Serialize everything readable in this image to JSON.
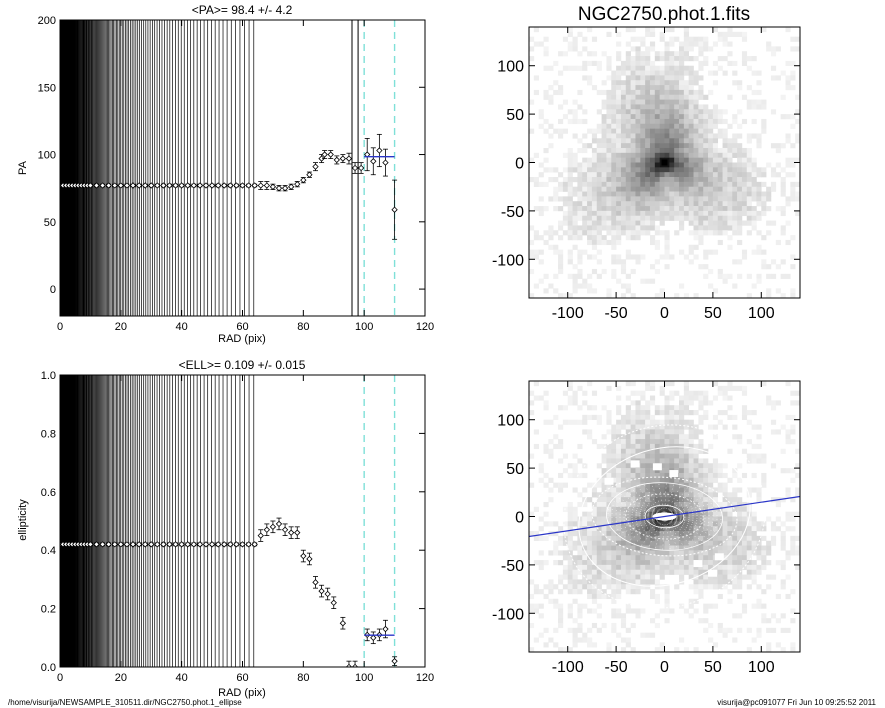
{
  "footer": {
    "path": "/home/visurija/NEWSAMPLE_310511.dir/NGC2750.phot.1_ellipse",
    "stamp": "visurija@pc091077  Fri Jun 10 09:25:52 2011"
  },
  "chart_data": [
    {
      "type": "scatter",
      "id": "pa-profile",
      "title": "<PA>=  98.4 +/-   4.2",
      "xlabel": "RAD (pix)",
      "ylabel": "PA",
      "xlim": [
        0,
        120
      ],
      "ylim": [
        -20,
        200
      ],
      "xticks": [
        0,
        20,
        40,
        60,
        80,
        100,
        120
      ],
      "yticks": [
        0,
        50,
        100,
        150,
        200
      ],
      "grid": false,
      "reference_lines": [
        96,
        98
      ],
      "fit_window": [
        100,
        110
      ],
      "mean_line": {
        "x": [
          100,
          110
        ],
        "y": 98.4
      },
      "points": [
        {
          "x": 0,
          "y": 77,
          "err": 1
        },
        {
          "x": 1,
          "y": 77,
          "err": 1
        },
        {
          "x": 2,
          "y": 77,
          "err": 1
        },
        {
          "x": 3,
          "y": 77,
          "err": 1
        },
        {
          "x": 4,
          "y": 77,
          "err": 1
        },
        {
          "x": 5,
          "y": 77,
          "err": 1
        },
        {
          "x": 6,
          "y": 77,
          "err": 1
        },
        {
          "x": 7,
          "y": 77,
          "err": 1
        },
        {
          "x": 8,
          "y": 77,
          "err": 1
        },
        {
          "x": 9,
          "y": 77,
          "err": 1
        },
        {
          "x": 10,
          "y": 77,
          "err": 1
        },
        {
          "x": 12,
          "y": 77,
          "err": 1
        },
        {
          "x": 14,
          "y": 77,
          "err": 1
        },
        {
          "x": 16,
          "y": 77,
          "err": 1
        },
        {
          "x": 18,
          "y": 77,
          "err": 1
        },
        {
          "x": 20,
          "y": 77,
          "err": 1
        },
        {
          "x": 22,
          "y": 77,
          "err": 1
        },
        {
          "x": 24,
          "y": 77,
          "err": 1
        },
        {
          "x": 26,
          "y": 77,
          "err": 1
        },
        {
          "x": 28,
          "y": 77,
          "err": 1
        },
        {
          "x": 30,
          "y": 77,
          "err": 1
        },
        {
          "x": 32,
          "y": 77,
          "err": 1
        },
        {
          "x": 34,
          "y": 77,
          "err": 1
        },
        {
          "x": 36,
          "y": 77,
          "err": 1
        },
        {
          "x": 38,
          "y": 77,
          "err": 1
        },
        {
          "x": 40,
          "y": 77,
          "err": 1
        },
        {
          "x": 42,
          "y": 77,
          "err": 1
        },
        {
          "x": 44,
          "y": 77,
          "err": 1
        },
        {
          "x": 46,
          "y": 77,
          "err": 1
        },
        {
          "x": 48,
          "y": 77,
          "err": 1
        },
        {
          "x": 50,
          "y": 77,
          "err": 1
        },
        {
          "x": 52,
          "y": 77,
          "err": 1
        },
        {
          "x": 54,
          "y": 77,
          "err": 1
        },
        {
          "x": 56,
          "y": 77,
          "err": 1
        },
        {
          "x": 58,
          "y": 77,
          "err": 1
        },
        {
          "x": 60,
          "y": 77,
          "err": 1
        },
        {
          "x": 62,
          "y": 77,
          "err": 1
        },
        {
          "x": 64,
          "y": 77,
          "err": 1
        },
        {
          "x": 66,
          "y": 77,
          "err": 3
        },
        {
          "x": 68,
          "y": 77,
          "err": 3
        },
        {
          "x": 70,
          "y": 76,
          "err": 2
        },
        {
          "x": 72,
          "y": 75,
          "err": 2
        },
        {
          "x": 74,
          "y": 75,
          "err": 2
        },
        {
          "x": 76,
          "y": 76,
          "err": 2
        },
        {
          "x": 78,
          "y": 78,
          "err": 2
        },
        {
          "x": 80,
          "y": 81,
          "err": 2
        },
        {
          "x": 82,
          "y": 85,
          "err": 2
        },
        {
          "x": 84,
          "y": 91,
          "err": 3
        },
        {
          "x": 86,
          "y": 97,
          "err": 3
        },
        {
          "x": 87,
          "y": 100,
          "err": 3
        },
        {
          "x": 89,
          "y": 100,
          "err": 3
        },
        {
          "x": 91,
          "y": 96,
          "err": 3
        },
        {
          "x": 93,
          "y": 97,
          "err": 3
        },
        {
          "x": 95,
          "y": 97,
          "err": 4
        },
        {
          "x": 97,
          "y": 90,
          "err": 4
        },
        {
          "x": 99,
          "y": 90,
          "err": 4
        },
        {
          "x": 101,
          "y": 100,
          "err": 12
        },
        {
          "x": 103,
          "y": 95,
          "err": 10
        },
        {
          "x": 105,
          "y": 103,
          "err": 12
        },
        {
          "x": 107,
          "y": 94,
          "err": 10
        },
        {
          "x": 110,
          "y": 59,
          "err": 22
        }
      ]
    },
    {
      "type": "scatter",
      "id": "ellipticity-profile",
      "title": "<ELL>= 0.109 +/-  0.015",
      "xlabel": "RAD (pix)",
      "ylabel": "ellipticity",
      "xlim": [
        0,
        120
      ],
      "ylim": [
        0,
        1
      ],
      "xticks": [
        0,
        20,
        40,
        60,
        80,
        100,
        120
      ],
      "yticks": [
        0.0,
        0.2,
        0.4,
        0.6,
        0.8,
        1.0
      ],
      "grid": false,
      "fit_window": [
        100,
        110
      ],
      "mean_line": {
        "x": [
          100,
          110
        ],
        "y": 0.109
      },
      "points": [
        {
          "x": 0,
          "y": 0.42,
          "err": 0.005
        },
        {
          "x": 1,
          "y": 0.42,
          "err": 0.005
        },
        {
          "x": 2,
          "y": 0.42,
          "err": 0.005
        },
        {
          "x": 3,
          "y": 0.42,
          "err": 0.005
        },
        {
          "x": 4,
          "y": 0.42,
          "err": 0.005
        },
        {
          "x": 5,
          "y": 0.42,
          "err": 0.005
        },
        {
          "x": 6,
          "y": 0.42,
          "err": 0.005
        },
        {
          "x": 7,
          "y": 0.42,
          "err": 0.005
        },
        {
          "x": 8,
          "y": 0.42,
          "err": 0.005
        },
        {
          "x": 9,
          "y": 0.42,
          "err": 0.005
        },
        {
          "x": 10,
          "y": 0.42,
          "err": 0.005
        },
        {
          "x": 12,
          "y": 0.42,
          "err": 0.005
        },
        {
          "x": 14,
          "y": 0.42,
          "err": 0.005
        },
        {
          "x": 16,
          "y": 0.42,
          "err": 0.005
        },
        {
          "x": 18,
          "y": 0.42,
          "err": 0.005
        },
        {
          "x": 20,
          "y": 0.42,
          "err": 0.005
        },
        {
          "x": 22,
          "y": 0.42,
          "err": 0.005
        },
        {
          "x": 24,
          "y": 0.42,
          "err": 0.005
        },
        {
          "x": 26,
          "y": 0.42,
          "err": 0.005
        },
        {
          "x": 28,
          "y": 0.42,
          "err": 0.005
        },
        {
          "x": 30,
          "y": 0.42,
          "err": 0.005
        },
        {
          "x": 32,
          "y": 0.42,
          "err": 0.005
        },
        {
          "x": 34,
          "y": 0.42,
          "err": 0.005
        },
        {
          "x": 36,
          "y": 0.42,
          "err": 0.005
        },
        {
          "x": 38,
          "y": 0.42,
          "err": 0.005
        },
        {
          "x": 40,
          "y": 0.42,
          "err": 0.005
        },
        {
          "x": 42,
          "y": 0.42,
          "err": 0.005
        },
        {
          "x": 44,
          "y": 0.42,
          "err": 0.005
        },
        {
          "x": 46,
          "y": 0.42,
          "err": 0.005
        },
        {
          "x": 48,
          "y": 0.42,
          "err": 0.005
        },
        {
          "x": 50,
          "y": 0.42,
          "err": 0.005
        },
        {
          "x": 52,
          "y": 0.42,
          "err": 0.005
        },
        {
          "x": 54,
          "y": 0.42,
          "err": 0.005
        },
        {
          "x": 56,
          "y": 0.42,
          "err": 0.005
        },
        {
          "x": 58,
          "y": 0.42,
          "err": 0.005
        },
        {
          "x": 60,
          "y": 0.42,
          "err": 0.005
        },
        {
          "x": 62,
          "y": 0.42,
          "err": 0.005
        },
        {
          "x": 64,
          "y": 0.42,
          "err": 0.005
        },
        {
          "x": 66,
          "y": 0.45,
          "err": 0.02
        },
        {
          "x": 68,
          "y": 0.47,
          "err": 0.02
        },
        {
          "x": 70,
          "y": 0.48,
          "err": 0.02
        },
        {
          "x": 72,
          "y": 0.49,
          "err": 0.02
        },
        {
          "x": 74,
          "y": 0.47,
          "err": 0.02
        },
        {
          "x": 76,
          "y": 0.46,
          "err": 0.02
        },
        {
          "x": 78,
          "y": 0.46,
          "err": 0.02
        },
        {
          "x": 80,
          "y": 0.38,
          "err": 0.02
        },
        {
          "x": 82,
          "y": 0.37,
          "err": 0.02
        },
        {
          "x": 84,
          "y": 0.29,
          "err": 0.02
        },
        {
          "x": 86,
          "y": 0.26,
          "err": 0.02
        },
        {
          "x": 88,
          "y": 0.25,
          "err": 0.02
        },
        {
          "x": 90,
          "y": 0.22,
          "err": 0.02
        },
        {
          "x": 93,
          "y": 0.15,
          "err": 0.02
        },
        {
          "x": 95,
          "y": 0.0,
          "err": 0.02
        },
        {
          "x": 97,
          "y": 0.0,
          "err": 0.02
        },
        {
          "x": 101,
          "y": 0.11,
          "err": 0.02
        },
        {
          "x": 103,
          "y": 0.1,
          "err": 0.02
        },
        {
          "x": 105,
          "y": 0.11,
          "err": 0.02
        },
        {
          "x": 107,
          "y": 0.13,
          "err": 0.03
        },
        {
          "x": 110,
          "y": 0.02,
          "err": 0.015
        }
      ]
    },
    {
      "type": "heatmap",
      "id": "galaxy-image",
      "title": "NGC2750.phot.1.fits",
      "xlim": [
        -140,
        140
      ],
      "ylim": [
        -140,
        140
      ],
      "xticks": [
        -100,
        -50,
        0,
        50,
        100
      ],
      "yticks": [
        -100,
        -50,
        0,
        50,
        100
      ],
      "grid": false,
      "colormap": "grayscale-inverted"
    },
    {
      "type": "heatmap",
      "id": "galaxy-ellipse-fit",
      "title": "",
      "xlim": [
        -140,
        140
      ],
      "ylim": [
        -140,
        140
      ],
      "xticks": [
        -100,
        -50,
        0,
        50,
        100
      ],
      "yticks": [
        -100,
        -50,
        0,
        50,
        100
      ],
      "grid": false,
      "colormap": "grayscale-inverted",
      "major_axis_line": {
        "pa_deg": 98.4,
        "color": "#2a35c8"
      },
      "ellipses": [
        {
          "a": 20,
          "ell": 0.42,
          "pa_deg": 77
        },
        {
          "a": 40,
          "ell": 0.42,
          "pa_deg": 77
        },
        {
          "a": 60,
          "ell": 0.42,
          "pa_deg": 77
        },
        {
          "a": 75,
          "ell": 0.46,
          "pa_deg": 76
        },
        {
          "a": 90,
          "ell": 0.22,
          "pa_deg": 97
        },
        {
          "a": 105,
          "ell": 0.11,
          "pa_deg": 98
        }
      ]
    }
  ],
  "colors": {
    "axis": "#000000",
    "fit_window_line": "#7fe0d8",
    "mean_line": "#2a35c8",
    "ellipse": "#ffffff"
  }
}
